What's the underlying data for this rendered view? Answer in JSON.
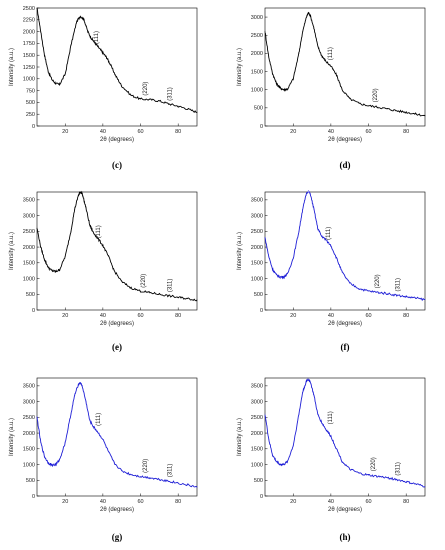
{
  "figure": {
    "panels": [
      "c",
      "d",
      "e",
      "f",
      "g",
      "h"
    ]
  },
  "chart_data": [
    {
      "label": "(c)",
      "type": "line",
      "color": "#000000",
      "xlabel": "2θ (degrees)",
      "ylabel": "Intensity (a.u.)",
      "xlim": [
        5,
        90
      ],
      "ylim": [
        0,
        2500
      ],
      "xticks": [
        20,
        40,
        60,
        80
      ],
      "yticks": [
        0,
        250,
        500,
        750,
        1000,
        1250,
        1500,
        1750,
        2000,
        2250,
        2500
      ],
      "x": [
        5,
        7,
        9,
        11,
        13,
        15,
        17,
        20,
        23,
        26,
        28,
        30,
        32,
        34,
        36,
        38,
        40,
        42,
        44,
        47,
        50,
        55,
        60,
        65,
        70,
        75,
        80,
        85,
        90
      ],
      "y": [
        2500,
        2000,
        1500,
        1150,
        980,
        900,
        880,
        1100,
        1700,
        2200,
        2330,
        2250,
        2000,
        1850,
        1750,
        1650,
        1550,
        1450,
        1300,
        1050,
        850,
        650,
        570,
        560,
        530,
        470,
        420,
        360,
        290
      ],
      "peaks": [
        {
          "text": "(111)",
          "x": 38,
          "y": 1650
        },
        {
          "text": "(220)",
          "x": 64,
          "y": 560
        },
        {
          "text": "(311)",
          "x": 77,
          "y": 450
        }
      ]
    },
    {
      "label": "(d)",
      "type": "line",
      "color": "#000000",
      "xlabel": "2θ (degrees)",
      "ylabel": "Intensity (a.u.)",
      "xlim": [
        5,
        90
      ],
      "ylim": [
        0,
        3250
      ],
      "xticks": [
        20,
        40,
        60,
        80
      ],
      "yticks": [
        0,
        500,
        1000,
        1500,
        2000,
        2500,
        3000
      ],
      "x": [
        5,
        7,
        9,
        11,
        13,
        15,
        17,
        20,
        23,
        25,
        27,
        28,
        29,
        31,
        33,
        35,
        37,
        40,
        43,
        46,
        50,
        55,
        60,
        65,
        70,
        75,
        80,
        85,
        90
      ],
      "y": [
        2600,
        1900,
        1450,
        1180,
        1050,
        1000,
        1020,
        1300,
        2000,
        2600,
        3000,
        3120,
        3050,
        2700,
        2200,
        1950,
        1800,
        1650,
        1400,
        1000,
        750,
        620,
        560,
        520,
        470,
        420,
        380,
        330,
        280
      ],
      "peaks": [
        {
          "text": "(111)",
          "x": 41,
          "y": 1700
        },
        {
          "text": "(220)",
          "x": 65,
          "y": 540
        }
      ]
    },
    {
      "label": "(e)",
      "type": "line",
      "color": "#000000",
      "xlabel": "2θ (degrees)",
      "ylabel": "Intensity (a.u.)",
      "xlim": [
        5,
        90
      ],
      "ylim": [
        0,
        3750
      ],
      "xticks": [
        20,
        40,
        60,
        80
      ],
      "yticks": [
        0,
        500,
        1000,
        1500,
        2000,
        2500,
        3000,
        3500
      ],
      "x": [
        5,
        7,
        9,
        11,
        13,
        15,
        17,
        20,
        23,
        25,
        27,
        28,
        29,
        31,
        33,
        35,
        37,
        40,
        43,
        46,
        50,
        55,
        60,
        65,
        70,
        75,
        80,
        85,
        90
      ],
      "y": [
        2600,
        2000,
        1600,
        1350,
        1250,
        1220,
        1280,
        1700,
        2500,
        3200,
        3650,
        3750,
        3700,
        3250,
        2700,
        2450,
        2300,
        2050,
        1700,
        1250,
        900,
        700,
        600,
        550,
        500,
        450,
        400,
        360,
        320
      ],
      "peaks": [
        {
          "text": "(111)",
          "x": 39,
          "y": 2150
        },
        {
          "text": "(220)",
          "x": 63,
          "y": 580
        },
        {
          "text": "(311)",
          "x": 77,
          "y": 440
        }
      ]
    },
    {
      "label": "(f)",
      "type": "line",
      "color": "#1f1fd6",
      "xlabel": "2θ (degrees)",
      "ylabel": "Intensity (a.u.)",
      "xlim": [
        5,
        90
      ],
      "ylim": [
        0,
        3750
      ],
      "xticks": [
        20,
        40,
        60,
        80
      ],
      "yticks": [
        0,
        500,
        1000,
        1500,
        2000,
        2500,
        3000,
        3500
      ],
      "x": [
        5,
        7,
        9,
        11,
        13,
        15,
        17,
        20,
        23,
        25,
        27,
        28,
        29,
        31,
        33,
        35,
        37,
        40,
        43,
        46,
        50,
        55,
        60,
        65,
        70,
        75,
        80,
        85,
        90
      ],
      "y": [
        2300,
        1700,
        1300,
        1120,
        1050,
        1050,
        1150,
        1650,
        2500,
        3200,
        3700,
        3800,
        3700,
        3200,
        2600,
        2350,
        2250,
        2050,
        1650,
        1200,
        850,
        680,
        600,
        560,
        520,
        470,
        420,
        380,
        330
      ],
      "peaks": [
        {
          "text": "(111)",
          "x": 40,
          "y": 2100
        },
        {
          "text": "(220)",
          "x": 66,
          "y": 560
        },
        {
          "text": "(311)",
          "x": 77,
          "y": 460
        }
      ]
    },
    {
      "label": "(g)",
      "type": "line",
      "color": "#1f1fd6",
      "xlabel": "2θ (degrees)",
      "ylabel": "Intensity (a.u.)",
      "xlim": [
        5,
        90
      ],
      "ylim": [
        0,
        3750
      ],
      "xticks": [
        20,
        40,
        60,
        80
      ],
      "yticks": [
        0,
        500,
        1000,
        1500,
        2000,
        2500,
        3000,
        3500
      ],
      "x": [
        5,
        7,
        9,
        11,
        13,
        15,
        17,
        20,
        23,
        25,
        27,
        28,
        29,
        31,
        33,
        35,
        37,
        40,
        43,
        46,
        50,
        55,
        60,
        65,
        70,
        75,
        80,
        85,
        90
      ],
      "y": [
        2500,
        1700,
        1250,
        1050,
        980,
        1000,
        1150,
        1700,
        2600,
        3200,
        3550,
        3600,
        3500,
        3000,
        2400,
        2200,
        2050,
        1800,
        1400,
        1050,
        800,
        680,
        620,
        580,
        530,
        470,
        410,
        350,
        280
      ],
      "peaks": [
        {
          "text": "(111)",
          "x": 39,
          "y": 2100
        },
        {
          "text": "(220)",
          "x": 64,
          "y": 610
        },
        {
          "text": "(311)",
          "x": 77,
          "y": 470
        }
      ]
    },
    {
      "label": "(h)",
      "type": "line",
      "color": "#1f1fd6",
      "xlabel": "2θ (degrees)",
      "ylabel": "Intensity (a.u.)",
      "xlim": [
        5,
        90
      ],
      "ylim": [
        0,
        3750
      ],
      "xticks": [
        20,
        40,
        60,
        80
      ],
      "yticks": [
        0,
        500,
        1000,
        1500,
        2000,
        2500,
        3000,
        3500
      ],
      "x": [
        5,
        7,
        9,
        11,
        13,
        15,
        17,
        20,
        23,
        25,
        27,
        28,
        29,
        31,
        33,
        35,
        37,
        40,
        43,
        46,
        50,
        55,
        60,
        65,
        70,
        75,
        80,
        85,
        90
      ],
      "y": [
        2600,
        1800,
        1300,
        1100,
        1000,
        1000,
        1100,
        1600,
        2600,
        3300,
        3650,
        3700,
        3650,
        3200,
        2600,
        2350,
        2150,
        1900,
        1500,
        1100,
        850,
        720,
        660,
        620,
        580,
        520,
        450,
        380,
        300
      ],
      "peaks": [
        {
          "text": "(111)",
          "x": 41,
          "y": 2150
        },
        {
          "text": "(220)",
          "x": 64,
          "y": 660
        },
        {
          "text": "(311)",
          "x": 77,
          "y": 520
        }
      ]
    }
  ]
}
